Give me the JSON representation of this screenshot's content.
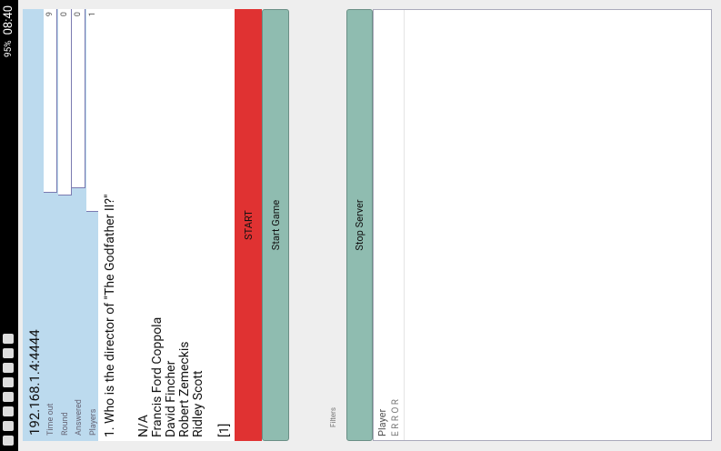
{
  "status_bar": {
    "battery": "95%",
    "time": "08:40"
  },
  "info": {
    "address": "192.168.1.4:4444",
    "fields": [
      {
        "label": "Time out",
        "value": "9"
      },
      {
        "label": "Round",
        "value": "0"
      },
      {
        "label": "Answered",
        "value": "0"
      },
      {
        "label": "Players",
        "value": "1"
      }
    ]
  },
  "question": {
    "text": "1. Who is the director of \"The Godfather II?\"",
    "options": [
      "N/A",
      "Francis Ford Coppola",
      "David Fincher",
      "Robert Zemeckis",
      "Ridley Scott"
    ],
    "answer": "[1]"
  },
  "buttons": {
    "start": "START",
    "start_game": "Start Game",
    "stop_server": "Stop Server"
  },
  "filters": "Filters",
  "list": {
    "header": "Player",
    "rows": [
      "E R R O R"
    ]
  }
}
